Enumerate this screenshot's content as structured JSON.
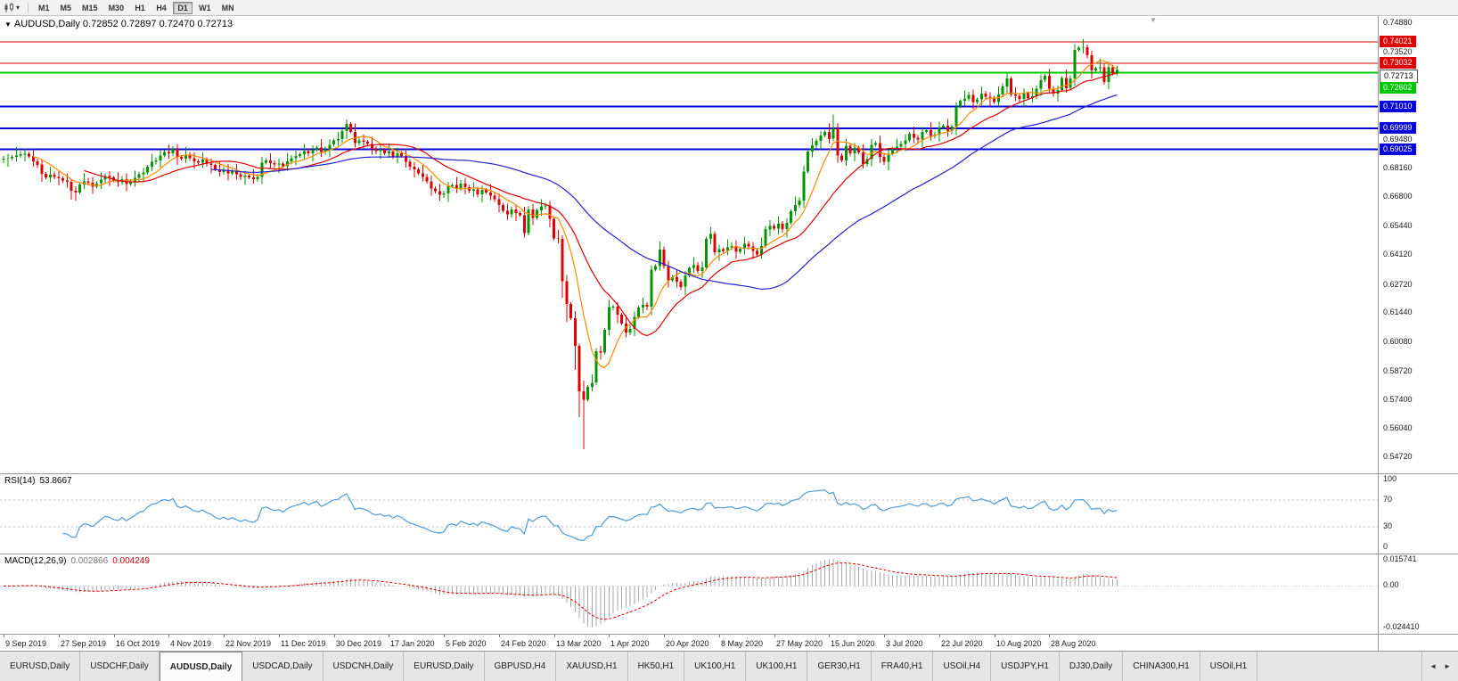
{
  "toolbar": {
    "caret": "▾",
    "timeframes": [
      "M1",
      "M5",
      "M15",
      "M30",
      "H1",
      "H4",
      "D1",
      "W1",
      "MN"
    ],
    "active_timeframe": "D1"
  },
  "chart": {
    "menu_icon": "▼",
    "title_line": "AUDUSD,Daily 0.72852 0.72897 0.72470 0.72713",
    "symbol": "AUDUSD",
    "period": "Daily",
    "ohlc": {
      "open": "0.72852",
      "high": "0.72897",
      "low": "0.72470",
      "close": "0.72713"
    },
    "shift_marker": "▼"
  },
  "price_axis": {
    "range": {
      "max": 0.7522,
      "min": 0.5399
    },
    "ticks": [
      "0.74880",
      "0.73520",
      "0.69480",
      "0.68160",
      "0.66800",
      "0.65440",
      "0.64120",
      "0.62720",
      "0.61440",
      "0.60080",
      "0.58720",
      "0.57400",
      "0.56040",
      "0.54720"
    ],
    "badges": [
      {
        "value": "0.74021",
        "price": 0.74021,
        "bg": "#e00000",
        "fg": "#ffffff"
      },
      {
        "value": "0.73032",
        "price": 0.73032,
        "bg": "#e00000",
        "fg": "#ffffff"
      },
      {
        "value": "0.72713",
        "price": 0.72713,
        "bg": "#ffffff",
        "fg": "#000000",
        "type": "current"
      },
      {
        "value": "0.72602",
        "price": 0.72602,
        "bg": "#00c800",
        "fg": "#ffffff"
      },
      {
        "value": "0.71010",
        "price": 0.7101,
        "bg": "#0000dc",
        "fg": "#ffffff"
      },
      {
        "value": "0.69999",
        "price": 0.69999,
        "bg": "#0000dc",
        "fg": "#ffffff"
      },
      {
        "value": "0.69025",
        "price": 0.69025,
        "bg": "#0000dc",
        "fg": "#ffffff"
      }
    ]
  },
  "hlines": [
    {
      "price": 0.74021,
      "color": "#e00000",
      "width": 1
    },
    {
      "price": 0.73032,
      "color": "#e00000",
      "width": 1
    },
    {
      "price": 0.72602,
      "color": "#00c800",
      "width": 2
    },
    {
      "price": 0.7101,
      "color": "#0000dc",
      "width": 2
    },
    {
      "price": 0.69999,
      "color": "#0000dc",
      "width": 2
    },
    {
      "price": 0.69025,
      "color": "#0000dc",
      "width": 2
    }
  ],
  "chart_data": {
    "type": "candlestick",
    "symbol": "AUDUSD",
    "timeframe": "Daily",
    "bar_spacing": 4.75,
    "bar_start": 4,
    "up_color": "#009600",
    "down_color": "#dc0000",
    "first_open": 0.6855,
    "closes": [
      0.686,
      0.6862,
      0.6868,
      0.6875,
      0.688,
      0.6882,
      0.687,
      0.6848,
      0.6832,
      0.679,
      0.6772,
      0.6785,
      0.6776,
      0.6768,
      0.6758,
      0.6752,
      0.671,
      0.6702,
      0.674,
      0.6755,
      0.6748,
      0.673,
      0.6745,
      0.6762,
      0.678,
      0.6772,
      0.6758,
      0.675,
      0.6765,
      0.6742,
      0.6755,
      0.677,
      0.6788,
      0.6795,
      0.6822,
      0.6845,
      0.6852,
      0.6875,
      0.689,
      0.6885,
      0.6905,
      0.6868,
      0.686,
      0.6875,
      0.6862,
      0.6848,
      0.6842,
      0.6855,
      0.6838,
      0.683,
      0.681,
      0.6798,
      0.6808,
      0.6792,
      0.6802,
      0.6788,
      0.6775,
      0.6782,
      0.6772,
      0.6765,
      0.6775,
      0.6842,
      0.6852,
      0.684,
      0.6832,
      0.6838,
      0.6825,
      0.6848,
      0.6862,
      0.6872,
      0.688,
      0.6895,
      0.6885,
      0.69,
      0.6912,
      0.689,
      0.6902,
      0.6925,
      0.6945,
      0.695,
      0.6988,
      0.7021,
      0.6985,
      0.6932,
      0.6945,
      0.6938,
      0.6928,
      0.6905,
      0.6895,
      0.6902,
      0.6885,
      0.6892,
      0.687,
      0.6885,
      0.6872,
      0.6845,
      0.6822,
      0.681,
      0.6792,
      0.6775,
      0.6755,
      0.6722,
      0.6708,
      0.6692,
      0.6698,
      0.6732,
      0.6738,
      0.6722,
      0.6745,
      0.6728,
      0.671,
      0.6718,
      0.6695,
      0.6715,
      0.6702,
      0.6688,
      0.6672,
      0.6645,
      0.6618,
      0.6602,
      0.6625,
      0.6608,
      0.6598,
      0.6515,
      0.6625,
      0.6585,
      0.662,
      0.6638,
      0.6642,
      0.658,
      0.649,
      0.6488,
      0.629,
      0.6185,
      0.612,
      0.599,
      0.578,
      0.574,
      0.58,
      0.582,
      0.5965,
      0.596,
      0.6065,
      0.617,
      0.6172,
      0.6135,
      0.6095,
      0.6052,
      0.607,
      0.6125,
      0.6168,
      0.6182,
      0.6172,
      0.6345,
      0.6362,
      0.6438,
      0.636,
      0.6295,
      0.631,
      0.6288,
      0.6265,
      0.6318,
      0.6352,
      0.6365,
      0.6338,
      0.6355,
      0.6488,
      0.651,
      0.6425,
      0.644,
      0.6432,
      0.6448,
      0.6455,
      0.6428,
      0.6442,
      0.6465,
      0.6452,
      0.6432,
      0.6415,
      0.6455,
      0.6532,
      0.6548,
      0.6535,
      0.6558,
      0.6532,
      0.6562,
      0.6615,
      0.6645,
      0.6665,
      0.68,
      0.6892,
      0.6922,
      0.6942,
      0.6968,
      0.6985,
      0.6952,
      0.7,
      0.6875,
      0.6852,
      0.692,
      0.6885,
      0.6912,
      0.6888,
      0.6835,
      0.6858,
      0.6925,
      0.6932,
      0.6868,
      0.6845,
      0.6882,
      0.6905,
      0.6915,
      0.6928,
      0.6945,
      0.6975,
      0.6958,
      0.6948,
      0.6985,
      0.6992,
      0.6965,
      0.6972,
      0.7005,
      0.7012,
      0.6988,
      0.7008,
      0.7102,
      0.7128,
      0.7138,
      0.7155,
      0.7122,
      0.7135,
      0.7162,
      0.7148,
      0.7143,
      0.7122,
      0.7158,
      0.7195,
      0.7232,
      0.7157,
      0.7152,
      0.7138,
      0.7165,
      0.7142,
      0.715,
      0.7185,
      0.7225,
      0.7245,
      0.7185,
      0.7162,
      0.7178,
      0.7235,
      0.7188,
      0.7232,
      0.7365,
      0.7375,
      0.7378,
      0.734,
      0.727,
      0.728,
      0.7285,
      0.7215,
      0.7285,
      0.7255,
      0.72713
    ],
    "wick_pattern": [
      0.0012,
      0.0026,
      0.0008,
      0.0033,
      0.0015,
      0.0021,
      0.0009,
      0.0038
    ],
    "wick_overrides": {
      "16": {
        "low": 0.667
      },
      "132": {
        "low": 0.6215
      },
      "133": {
        "low": 0.61,
        "high": 0.632
      },
      "135": {
        "low": 0.588
      },
      "136": {
        "low": 0.566
      },
      "137": {
        "low": 0.551,
        "high": 0.583
      },
      "196": {
        "high": 0.7064
      },
      "255": {
        "high": 0.7414
      },
      "263": {
        "high": 0.72897,
        "low": 0.7247
      }
    },
    "moving_averages": [
      {
        "period": 8,
        "color": "#ff8a00"
      },
      {
        "period": 20,
        "color": "#dd0000"
      },
      {
        "period": 50,
        "color": "#2222cc"
      }
    ],
    "x_labels": [
      "9 Sep 2019",
      "27 Sep 2019",
      "16 Oct 2019",
      "4 Nov 2019",
      "22 Nov 2019",
      "11 Dec 2019",
      "30 Dec 2019",
      "17 Jan 2020",
      "5 Feb 2020",
      "24 Feb 2020",
      "13 Mar 2020",
      "1 Apr 2020",
      "20 Apr 2020",
      "8 May 2020",
      "27 May 2020",
      "15 Jun 2020",
      "3 Jul 2020",
      "22 Jul 2020",
      "10 Aug 2020",
      "28 Aug 2020"
    ],
    "x_label_bar_step": 13
  },
  "rsi": {
    "label": "RSI(14)",
    "value": "53.8667",
    "period": 14,
    "levels": [
      70,
      30
    ],
    "axis": [
      "100",
      "70",
      "30",
      "0"
    ],
    "color": "#4f9bd5"
  },
  "macd": {
    "label": "MACD(12,26,9)",
    "value_main": "0.002866",
    "value_signal": "0.004249",
    "fast": 12,
    "slow": 26,
    "signal_period": 9,
    "axis": [
      "0.015741",
      "0.00",
      "-0.024410"
    ],
    "hist_color": "#a8a8a8",
    "signal_color": "#dd0000"
  },
  "tabs": {
    "left_arrow": "◄",
    "right_arrow": "►",
    "active_index": 2,
    "items": [
      "EURUSD,Daily",
      "USDCHF,Daily",
      "AUDUSD,Daily",
      "USDCAD,Daily",
      "USDCNH,Daily",
      "EURUSD,Daily",
      "GBPUSD,H4",
      "XAUUSD,H1",
      "HK50,H1",
      "UK100,H1",
      "UK100,H1",
      "GER30,H1",
      "FRA40,H1",
      "USOil,H4",
      "USDJPY,H1",
      "DJ30,Daily",
      "CHINA300,H1",
      "USOil,H1"
    ]
  }
}
